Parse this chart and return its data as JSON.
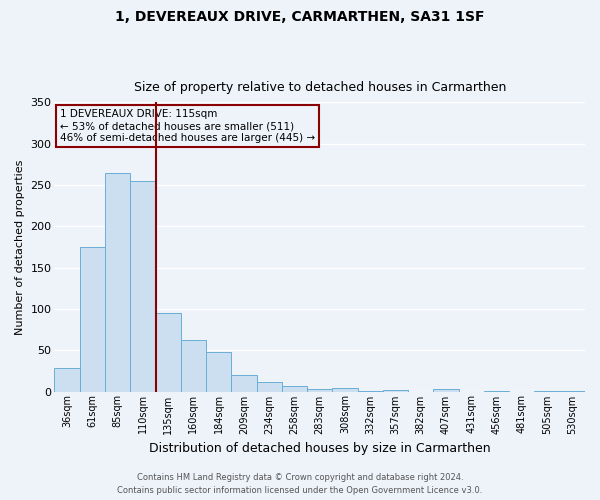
{
  "title": "1, DEVEREAUX DRIVE, CARMARTHEN, SA31 1SF",
  "subtitle": "Size of property relative to detached houses in Carmarthen",
  "xlabel": "Distribution of detached houses by size in Carmarthen",
  "ylabel": "Number of detached properties",
  "bin_labels": [
    "36sqm",
    "61sqm",
    "85sqm",
    "110sqm",
    "135sqm",
    "160sqm",
    "184sqm",
    "209sqm",
    "234sqm",
    "258sqm",
    "283sqm",
    "308sqm",
    "332sqm",
    "357sqm",
    "382sqm",
    "407sqm",
    "431sqm",
    "456sqm",
    "481sqm",
    "505sqm",
    "530sqm"
  ],
  "bar_heights": [
    28,
    175,
    264,
    255,
    95,
    62,
    48,
    20,
    11,
    7,
    3,
    4,
    1,
    2,
    0,
    3,
    0,
    1,
    0,
    1,
    1
  ],
  "bar_color": "#ccdff0",
  "bar_edge_color": "#6aaed6",
  "ylim": [
    0,
    350
  ],
  "yticks": [
    0,
    50,
    100,
    150,
    200,
    250,
    300,
    350
  ],
  "property_line_color": "#8b0000",
  "annotation_title": "1 DEVEREAUX DRIVE: 115sqm",
  "annotation_line1": "← 53% of detached houses are smaller (511)",
  "annotation_line2": "46% of semi-detached houses are larger (445) →",
  "annotation_box_color": "#8b0000",
  "footer_line1": "Contains HM Land Registry data © Crown copyright and database right 2024.",
  "footer_line2": "Contains public sector information licensed under the Open Government Licence v3.0.",
  "background_color": "#eef2f9",
  "grid_color": "#ffffff"
}
